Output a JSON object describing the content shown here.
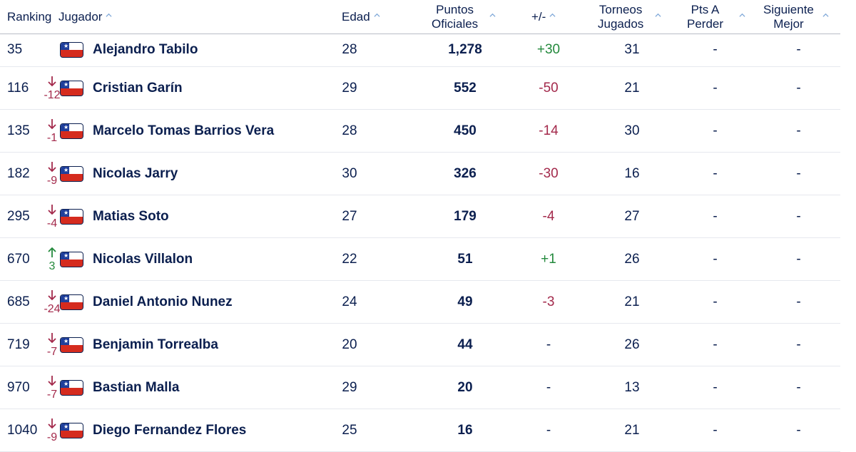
{
  "columns": {
    "ranking": "Ranking",
    "player": "Jugador",
    "age": "Edad",
    "points_line1": "Puntos",
    "points_line2": "Oficiales",
    "delta": "+/-",
    "tournaments_line1": "Torneos",
    "tournaments_line2": "Jugados",
    "ptslose_line1": "Pts A",
    "ptslose_line2": "Perder",
    "next_line1": "Siguiente",
    "next_line2": "Mejor"
  },
  "icons": {
    "sort": "sort-caret-up-icon",
    "flag": "chile-flag-icon",
    "up": "arrow-up-icon",
    "down": "arrow-down-icon"
  },
  "colors": {
    "text": "#0b1f4f",
    "positive": "#23893c",
    "negative": "#a3294b",
    "sort_caret": "#7fa8d8"
  },
  "players": [
    {
      "rank": "35",
      "move": "",
      "dir": "none",
      "name": "Alejandro Tabilo",
      "age": "28",
      "points": "1,278",
      "delta": "+30",
      "tournaments": "31",
      "pts_lose": "-",
      "next": "-"
    },
    {
      "rank": "116",
      "move": "-12",
      "dir": "down",
      "name": "Cristian Garín",
      "age": "29",
      "points": "552",
      "delta": "-50",
      "tournaments": "21",
      "pts_lose": "-",
      "next": "-"
    },
    {
      "rank": "135",
      "move": "-1",
      "dir": "down",
      "name": "Marcelo Tomas Barrios Vera",
      "age": "28",
      "points": "450",
      "delta": "-14",
      "tournaments": "30",
      "pts_lose": "-",
      "next": "-"
    },
    {
      "rank": "182",
      "move": "-9",
      "dir": "down",
      "name": "Nicolas Jarry",
      "age": "30",
      "points": "326",
      "delta": "-30",
      "tournaments": "16",
      "pts_lose": "-",
      "next": "-"
    },
    {
      "rank": "295",
      "move": "-4",
      "dir": "down",
      "name": "Matias Soto",
      "age": "27",
      "points": "179",
      "delta": "-4",
      "tournaments": "27",
      "pts_lose": "-",
      "next": "-"
    },
    {
      "rank": "670",
      "move": "3",
      "dir": "up",
      "name": "Nicolas Villalon",
      "age": "22",
      "points": "51",
      "delta": "+1",
      "tournaments": "26",
      "pts_lose": "-",
      "next": "-"
    },
    {
      "rank": "685",
      "move": "-24",
      "dir": "down",
      "name": "Daniel Antonio Nunez",
      "age": "24",
      "points": "49",
      "delta": "-3",
      "tournaments": "21",
      "pts_lose": "-",
      "next": "-"
    },
    {
      "rank": "719",
      "move": "-7",
      "dir": "down",
      "name": "Benjamin Torrealba",
      "age": "20",
      "points": "44",
      "delta": "-",
      "tournaments": "26",
      "pts_lose": "-",
      "next": "-"
    },
    {
      "rank": "970",
      "move": "-7",
      "dir": "down",
      "name": "Bastian Malla",
      "age": "29",
      "points": "20",
      "delta": "-",
      "tournaments": "13",
      "pts_lose": "-",
      "next": "-"
    },
    {
      "rank": "1040",
      "move": "-9",
      "dir": "down",
      "name": "Diego Fernandez Flores",
      "age": "25",
      "points": "16",
      "delta": "-",
      "tournaments": "21",
      "pts_lose": "-",
      "next": "-"
    }
  ]
}
